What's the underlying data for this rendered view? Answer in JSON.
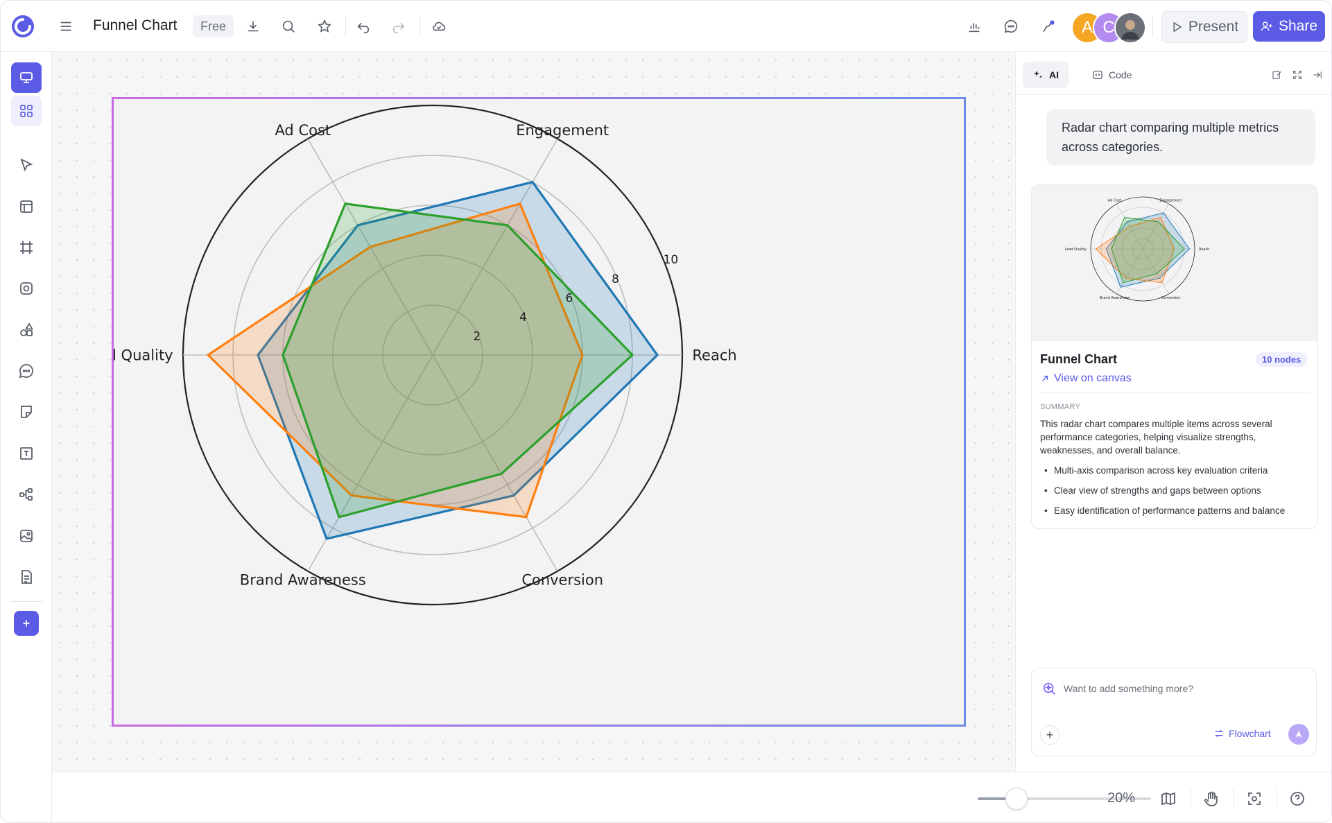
{
  "header": {
    "title": "Funnel Chart",
    "plan_badge": "Free",
    "avatars": [
      {
        "initial": "A",
        "color": "#f5a623"
      },
      {
        "initial": "C",
        "color": "#b48cf0"
      },
      {
        "initial": "",
        "color": "#6b6f78"
      }
    ],
    "present_label": "Present",
    "share_label": "Share",
    "accent_color": "#5b5be6"
  },
  "left_toolbar": {
    "tools": [
      "presentation-icon",
      "grid-icon",
      "select-pointer-icon",
      "table-icon",
      "frame-icon",
      "shape-circle-icon",
      "shapes-icon",
      "comment-icon",
      "sticky-note-icon",
      "text-icon",
      "mindmap-icon",
      "image-icon",
      "document-icon",
      "add-icon"
    ]
  },
  "canvas": {
    "chart_data": {
      "type": "radar",
      "title": "",
      "categories": [
        "Reach",
        "Engagement",
        "Ad Cost",
        "Lead Quality",
        "Brand Awareness",
        "Conversion"
      ],
      "radial_ticks": [
        2,
        4,
        6,
        8,
        10
      ],
      "rmax": 10,
      "series": [
        {
          "color": "#1f77b4",
          "values": [
            9,
            8,
            6,
            7,
            8.5,
            6.5
          ]
        },
        {
          "color": "#ff7f0e",
          "values": [
            6,
            7,
            5,
            9,
            6.5,
            7.5
          ]
        },
        {
          "color": "#2ca02c",
          "values": [
            8,
            6,
            7,
            6,
            7.5,
            5.5
          ]
        }
      ],
      "grid": true
    }
  },
  "bottom_bar": {
    "zoom_label": "20%",
    "zoom_level": 0.22
  },
  "panel": {
    "tabs": [
      {
        "label": "AI",
        "icon": "sparkles-icon",
        "active": true
      },
      {
        "label": "Code",
        "icon": "code-icon",
        "active": false
      }
    ],
    "prompt": "Radar chart comparing multiple metrics across categories.",
    "result": {
      "title": "Funnel Chart",
      "nodes_badge": "10 nodes",
      "view_link": "View on canvas",
      "summary_heading": "SUMMARY",
      "summary": "This radar chart compares multiple items across several performance categories, helping visualize strengths, weaknesses, and overall balance.",
      "bullets": [
        "Multi-axis comparison across key evaluation criteria",
        "Clear view of strengths and gaps between options",
        "Easy identification of performance patterns and balance"
      ]
    },
    "compose": {
      "placeholder": "Want to add something more?",
      "mode_label": "Flowchart"
    }
  }
}
